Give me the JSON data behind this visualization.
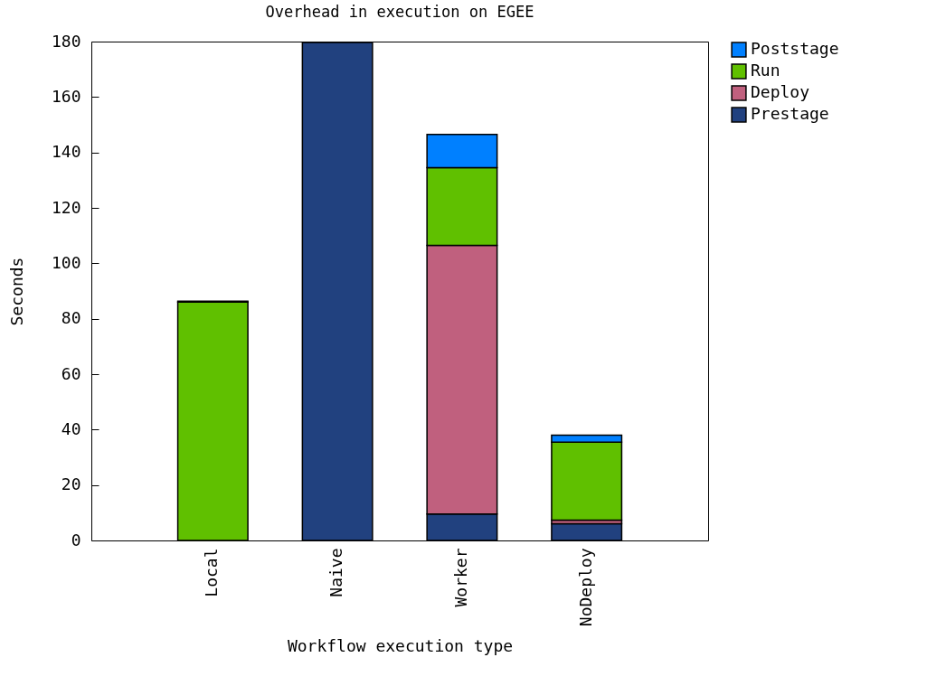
{
  "chart_data": {
    "type": "bar",
    "title": "Overhead in execution on EGEE",
    "xlabel": "Workflow execution type",
    "ylabel": "Seconds",
    "categories": [
      "Local",
      "Naive",
      "Worker",
      "NoDeploy"
    ],
    "stacked": true,
    "series": [
      {
        "name": "Prestage",
        "color": "#21417f",
        "values": [
          null,
          179.7,
          9.5,
          6
        ]
      },
      {
        "name": "Deploy",
        "color": "#c0607e",
        "values": [
          null,
          null,
          97,
          1.3
        ]
      },
      {
        "name": "Run",
        "color": "#60c000",
        "values": [
          86,
          null,
          28,
          28.2
        ]
      },
      {
        "name": "Poststage",
        "color": "#0080ff",
        "values": [
          0.3,
          null,
          12,
          2.5
        ]
      }
    ],
    "ylim": [
      0,
      180
    ],
    "yticks": [
      0,
      20,
      40,
      60,
      80,
      100,
      120,
      140,
      160,
      180
    ],
    "grid": false,
    "legend": "top right"
  }
}
